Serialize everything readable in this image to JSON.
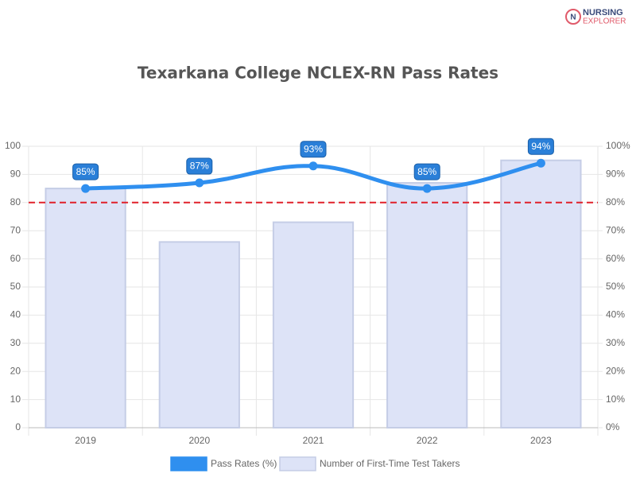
{
  "brand": {
    "line1": "NURSING",
    "line2": "EXPLORER"
  },
  "chart_data": {
    "type": "bar",
    "title": "Texarkana College NCLEX-RN Pass Rates",
    "categories": [
      "2019",
      "2020",
      "2021",
      "2022",
      "2023"
    ],
    "series": [
      {
        "name": "Pass Rates (%)",
        "type": "line",
        "axis": "y2",
        "color": "#2f8fef",
        "values": [
          85,
          87,
          93,
          85,
          94
        ],
        "value_labels": [
          "85%",
          "87%",
          "93%",
          "85%",
          "94%"
        ]
      },
      {
        "name": "Number of First-Time Test Takers",
        "type": "bar",
        "color": "#dde3f7",
        "values": [
          85,
          66,
          73,
          87,
          95
        ]
      }
    ],
    "ylim": [
      0,
      100
    ],
    "yticks": [
      0,
      10,
      20,
      30,
      40,
      50,
      60,
      70,
      80,
      90,
      100
    ],
    "y2lim": [
      0,
      100
    ],
    "y2ticks": [
      {
        "value": 0,
        "label": "0%"
      },
      {
        "value": 10,
        "label": "10%"
      },
      {
        "value": 20,
        "label": "20%"
      },
      {
        "value": 30,
        "label": "30%"
      },
      {
        "value": 40,
        "label": "40%"
      },
      {
        "value": 50,
        "label": "50%"
      },
      {
        "value": 60,
        "label": "60%"
      },
      {
        "value": 70,
        "label": "70%"
      },
      {
        "value": 80,
        "label": "80%"
      },
      {
        "value": 90,
        "label": "90%"
      },
      {
        "value": 100,
        "label": "100%"
      }
    ],
    "reference_line": {
      "value": 80,
      "axis": "y2",
      "color": "#e0202a"
    },
    "grid": true
  }
}
